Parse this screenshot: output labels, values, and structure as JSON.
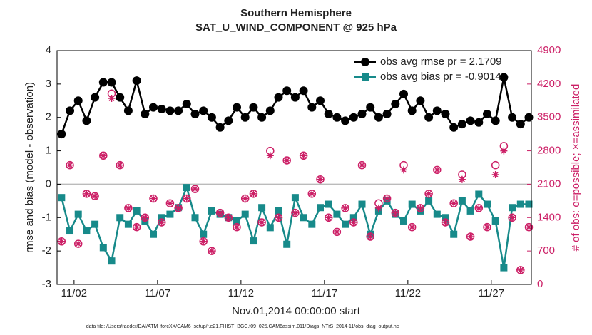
{
  "chart_data": {
    "type": "line",
    "title": "Southern Hemisphere",
    "subtitle": "SAT_U_WIND_COMPONENT @ 925 hPa",
    "xlabel": "Nov.01,2014 00:00:00 start",
    "ylabel": "rmse and bias (model - observation)",
    "y2label": "# of obs: o=possible; ×=assimilated",
    "footnote": "data file: /Users/raeder/DAI/ATM_forcXX/CAM6_setup/f.e21.FHIST_BGC.f09_025.CAM6assim.011/Diags_NTrS_2014-11/obs_diag_output.nc",
    "xlim": [
      0.98,
      29.4
    ],
    "xticks": [
      {
        "value": 2,
        "label": "11/02"
      },
      {
        "value": 7,
        "label": "11/07"
      },
      {
        "value": 12,
        "label": "11/12"
      },
      {
        "value": 17,
        "label": "11/17"
      },
      {
        "value": 22,
        "label": "11/22"
      },
      {
        "value": 27,
        "label": "11/27"
      }
    ],
    "ylim": [
      -3,
      4
    ],
    "yticks": [
      -3,
      -2,
      -1,
      0,
      1,
      2,
      3,
      4
    ],
    "y2lim": [
      0,
      4900
    ],
    "y2ticks": [
      0,
      700,
      1400,
      2100,
      2800,
      3500,
      4200,
      4900
    ],
    "zero_line": true,
    "legend": "upper right",
    "x": [
      1.25,
      1.75,
      2.25,
      2.75,
      3.25,
      3.75,
      4.25,
      4.75,
      5.25,
      5.75,
      6.25,
      6.75,
      7.25,
      7.75,
      8.25,
      8.75,
      9.25,
      9.75,
      10.25,
      10.75,
      11.25,
      11.75,
      12.25,
      12.75,
      13.25,
      13.75,
      14.25,
      14.75,
      15.25,
      15.75,
      16.25,
      16.75,
      17.25,
      17.75,
      18.25,
      18.75,
      19.25,
      19.75,
      20.25,
      20.75,
      21.25,
      21.75,
      22.25,
      22.75,
      23.25,
      23.75,
      24.25,
      24.75,
      25.25,
      25.75,
      26.25,
      26.75,
      27.25,
      27.75,
      28.25,
      28.75,
      29.25
    ],
    "series": [
      {
        "name": "obs avg rmse pr = 2.1709",
        "color": "#000000",
        "marker": "circle",
        "line": true,
        "legend": true,
        "values": [
          1.5,
          2.2,
          2.5,
          1.9,
          2.6,
          3.05,
          3.05,
          2.6,
          2.2,
          3.1,
          2.1,
          2.3,
          2.25,
          2.2,
          2.2,
          2.4,
          2.1,
          2.2,
          2.0,
          1.7,
          1.9,
          2.3,
          2.0,
          2.3,
          2.0,
          2.2,
          2.6,
          2.8,
          2.6,
          2.8,
          2.3,
          2.5,
          2.1,
          2.0,
          1.9,
          2.0,
          2.1,
          2.3,
          2.0,
          2.1,
          2.4,
          2.7,
          2.2,
          2.5,
          2.0,
          2.2,
          2.1,
          1.7,
          1.8,
          1.9,
          1.85,
          2.1,
          1.9,
          3.2,
          2.0,
          1.8,
          2.0
        ]
      },
      {
        "name": "obs avg bias pr = -0.9014",
        "color": "#178a8a",
        "marker": "square",
        "line": true,
        "legend": true,
        "values": [
          -0.4,
          -1.4,
          -0.9,
          -1.4,
          -1.2,
          -1.9,
          -2.3,
          -1.0,
          -1.2,
          -0.8,
          -1.1,
          -1.5,
          -1.0,
          -0.9,
          -0.7,
          -0.1,
          -1.0,
          -1.5,
          -0.8,
          -0.9,
          -1.0,
          -1.1,
          -0.9,
          -1.7,
          -0.7,
          -1.3,
          -0.8,
          -1.8,
          -0.4,
          -1.0,
          -1.2,
          -0.7,
          -0.6,
          -0.9,
          -1.2,
          -1.0,
          -0.6,
          -1.5,
          -0.8,
          -0.5,
          -0.9,
          -1.1,
          -0.6,
          -0.8,
          -0.5,
          -0.9,
          -1.0,
          -1.5,
          -0.5,
          -0.8,
          -0.3,
          -0.6,
          -1.1,
          -2.5,
          -0.7,
          -0.6,
          -0.6
        ]
      },
      {
        "color": "#cc1f66",
        "marker": "open-circle",
        "line": false,
        "legend": false,
        "axis": "y2",
        "values": [
          900,
          2500,
          850,
          1900,
          1850,
          2700,
          4000,
          2500,
          1600,
          1200,
          1400,
          1800,
          1300,
          1700,
          1600,
          1800,
          2000,
          900,
          700,
          1500,
          1400,
          1200,
          1800,
          1900,
          1300,
          2800,
          1400,
          2600,
          1500,
          2700,
          1900,
          2200,
          1400,
          1100,
          1600,
          1300,
          2500,
          1000,
          1700,
          1800,
          1500,
          2500,
          1200,
          1600,
          1900,
          2400,
          1300,
          1700,
          2300,
          1000,
          1600,
          1200,
          2500,
          2900,
          1400,
          300,
          1200
        ]
      },
      {
        "color": "#cc1f66",
        "marker": "asterisk",
        "line": false,
        "legend": false,
        "axis": "y2",
        "values": [
          900,
          2500,
          850,
          1900,
          1850,
          2700,
          3900,
          2500,
          1600,
          1200,
          1400,
          1800,
          1300,
          1700,
          1600,
          1800,
          2000,
          900,
          700,
          1500,
          1400,
          1200,
          1800,
          1900,
          1300,
          2700,
          1400,
          2600,
          1500,
          2700,
          1900,
          2200,
          1400,
          1100,
          1600,
          1300,
          2500,
          1000,
          1600,
          1800,
          1500,
          2400,
          1200,
          1600,
          1900,
          2400,
          1300,
          1700,
          2200,
          1000,
          1600,
          1200,
          2300,
          2800,
          1400,
          300,
          1200
        ]
      }
    ]
  }
}
